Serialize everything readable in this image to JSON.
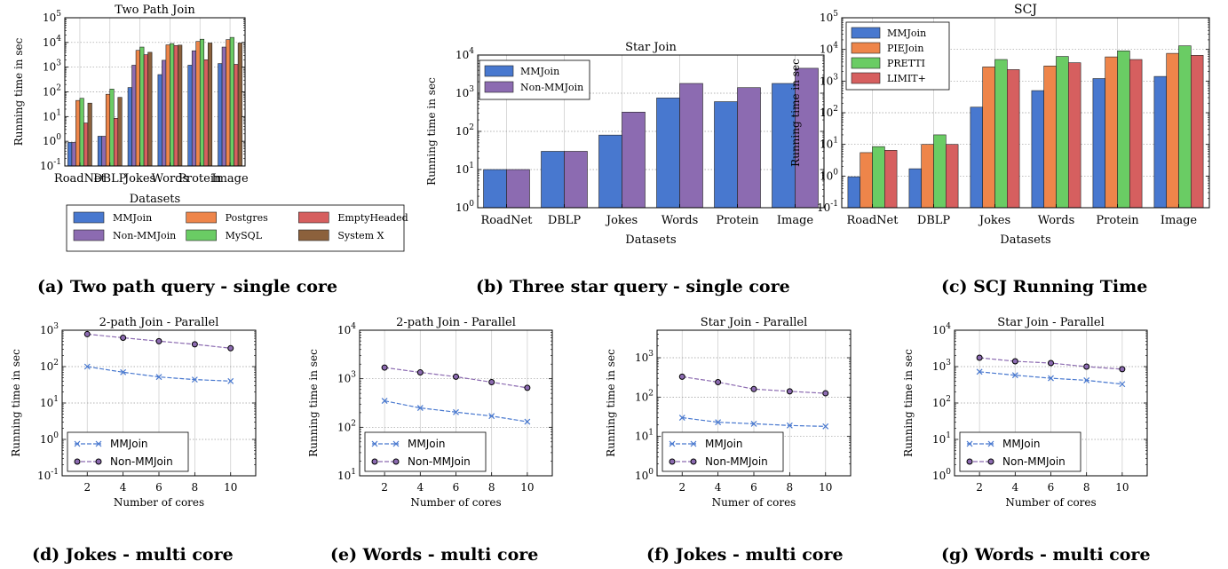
{
  "colors": {
    "mmjoin": "#4878cf",
    "nonmm": "#8c6bb1",
    "postgres": "#ee854a",
    "mysql": "#6acc64",
    "emptyheaded": "#d65f5f",
    "systemx": "#8c613c",
    "pie": "#ee854a",
    "pretti": "#6acc64",
    "limit": "#d65f5f",
    "line_mm": "#4878cf",
    "line_nonmm": "#8c6bb1"
  },
  "captions": {
    "a": "(a) Two path query - single core",
    "b": "(b) Three star query - single core",
    "c": "(c) SCJ Running Time",
    "d": "(d) Jokes - multi core",
    "e": "(e) Words - multi core",
    "f": "(f) Jokes - multi core",
    "g": "(g) Words - multi core"
  },
  "chart_data": [
    {
      "id": "a",
      "type": "bar",
      "log_scale": true,
      "title": "Two Path Join",
      "xlabel": "Datasets",
      "ylabel": "Running time in sec",
      "ylim_exp": [
        -1,
        5
      ],
      "categories": [
        "RoadNet",
        "DBLP",
        "Jokes",
        "Words",
        "Protein",
        "Image"
      ],
      "legend": "below",
      "series": [
        {
          "name": "MMJoin",
          "color_key": "mmjoin",
          "values": [
            0.9,
            1.6,
            150,
            500,
            1200,
            1400
          ]
        },
        {
          "name": "Non-MMJoin",
          "color_key": "nonmm",
          "values": [
            0.9,
            1.6,
            1200,
            1900,
            4600,
            6500
          ]
        },
        {
          "name": "Postgres",
          "color_key": "postgres",
          "values": [
            45,
            80,
            4800,
            8000,
            11000,
            13000
          ]
        },
        {
          "name": "MySQL",
          "color_key": "mysql",
          "values": [
            55,
            130,
            6500,
            9000,
            13500,
            16000
          ]
        },
        {
          "name": "EmptyHeaded",
          "color_key": "emptyheaded",
          "values": [
            5.5,
            8.5,
            3200,
            7500,
            2000,
            1300
          ]
        },
        {
          "name": "System X",
          "color_key": "systemx",
          "values": [
            35,
            60,
            4000,
            7800,
            9500,
            9500
          ]
        }
      ]
    },
    {
      "id": "b",
      "type": "bar",
      "log_scale": true,
      "title": "Star Join",
      "xlabel": "Datasets",
      "ylabel": "Running time in sec",
      "ylim_exp": [
        0,
        4
      ],
      "categories": [
        "RoadNet",
        "DBLP",
        "Jokes",
        "Words",
        "Protein",
        "Image"
      ],
      "legend": "top-left",
      "series": [
        {
          "name": "MMJoin",
          "color_key": "mmjoin",
          "values": [
            10,
            30,
            80,
            750,
            600,
            1800
          ]
        },
        {
          "name": "Non-MMJoin",
          "color_key": "nonmm",
          "values": [
            10,
            30,
            320,
            1800,
            1400,
            4500
          ]
        }
      ]
    },
    {
      "id": "c",
      "type": "bar",
      "log_scale": true,
      "title": "SCJ",
      "xlabel": "Datasets",
      "ylabel": "Running time in sec",
      "ylim_exp": [
        -1,
        5
      ],
      "categories": [
        "RoadNet",
        "DBLP",
        "Jokes",
        "Words",
        "Protein",
        "Image"
      ],
      "legend": "top-left",
      "series": [
        {
          "name": "MMJoin",
          "color_key": "mmjoin",
          "values": [
            0.95,
            1.7,
            150,
            500,
            1200,
            1400
          ]
        },
        {
          "name": "PIEJoin",
          "color_key": "pie",
          "values": [
            5.5,
            10,
            2800,
            3000,
            5800,
            7500
          ]
        },
        {
          "name": "PRETTI",
          "color_key": "pretti",
          "values": [
            8.5,
            20,
            4800,
            6000,
            9000,
            13000
          ]
        },
        {
          "name": "LIMIT+",
          "color_key": "limit",
          "values": [
            6.5,
            10,
            2300,
            3800,
            4800,
            6500
          ]
        }
      ]
    },
    {
      "id": "d",
      "type": "line",
      "log_scale": true,
      "title": "2-path Join - Parallel",
      "xlabel": "Number of cores",
      "ylabel": "Running time in sec",
      "ylim_exp": [
        -1,
        3
      ],
      "x": [
        2,
        4,
        6,
        8,
        10
      ],
      "xticks": [
        2,
        4,
        6,
        8,
        10
      ],
      "legend": "bottom-left",
      "series": [
        {
          "name": "MMJoin",
          "marker": "x",
          "color_key": "line_mm",
          "values": [
            100,
            70,
            52,
            44,
            40
          ]
        },
        {
          "name": "Non-MMJoin",
          "marker": "o",
          "color_key": "line_nonmm",
          "values": [
            780,
            620,
            500,
            410,
            320
          ]
        }
      ]
    },
    {
      "id": "e",
      "type": "line",
      "log_scale": true,
      "title": "2-path Join - Parallel",
      "xlabel": "Number of cores",
      "ylabel": "Running time in sec",
      "ylim_exp": [
        1,
        4
      ],
      "x": [
        2,
        4,
        6,
        8,
        10
      ],
      "xticks": [
        2,
        4,
        6,
        8,
        10
      ],
      "legend": "bottom-left",
      "series": [
        {
          "name": "MMJoin",
          "marker": "x",
          "color_key": "line_mm",
          "values": [
            350,
            250,
            205,
            170,
            130
          ]
        },
        {
          "name": "Non-MMJoin",
          "marker": "o",
          "color_key": "line_nonmm",
          "values": [
            1700,
            1350,
            1100,
            850,
            650
          ]
        }
      ]
    },
    {
      "id": "f",
      "type": "line",
      "log_scale": true,
      "title": "Star Join - Parallel",
      "xlabel": "Numer of cores",
      "ylabel": "Running time in sec",
      "ylim_exp": [
        0,
        3.7
      ],
      "x": [
        2,
        4,
        6,
        8,
        10
      ],
      "xticks": [
        2,
        4,
        6,
        8,
        10
      ],
      "legend": "bottom-left",
      "series": [
        {
          "name": "MMJoin",
          "marker": "x",
          "color_key": "line_mm",
          "values": [
            30,
            23,
            21,
            19,
            18
          ]
        },
        {
          "name": "Non-MMJoin",
          "marker": "o",
          "color_key": "line_nonmm",
          "values": [
            330,
            240,
            160,
            140,
            125
          ]
        }
      ]
    },
    {
      "id": "g",
      "type": "line",
      "log_scale": true,
      "title": "Star Join - Parallel",
      "xlabel": "Number of cores",
      "ylabel": "Running time in sec",
      "ylim_exp": [
        0,
        4
      ],
      "x": [
        2,
        4,
        6,
        8,
        10
      ],
      "xticks": [
        2,
        4,
        6,
        8,
        10
      ],
      "legend": "bottom-left",
      "series": [
        {
          "name": "MMJoin",
          "marker": "x",
          "color_key": "line_mm",
          "values": [
            720,
            580,
            480,
            420,
            330
          ]
        },
        {
          "name": "Non-MMJoin",
          "marker": "o",
          "color_key": "line_nonmm",
          "values": [
            1750,
            1400,
            1250,
            1000,
            850
          ]
        }
      ]
    }
  ]
}
